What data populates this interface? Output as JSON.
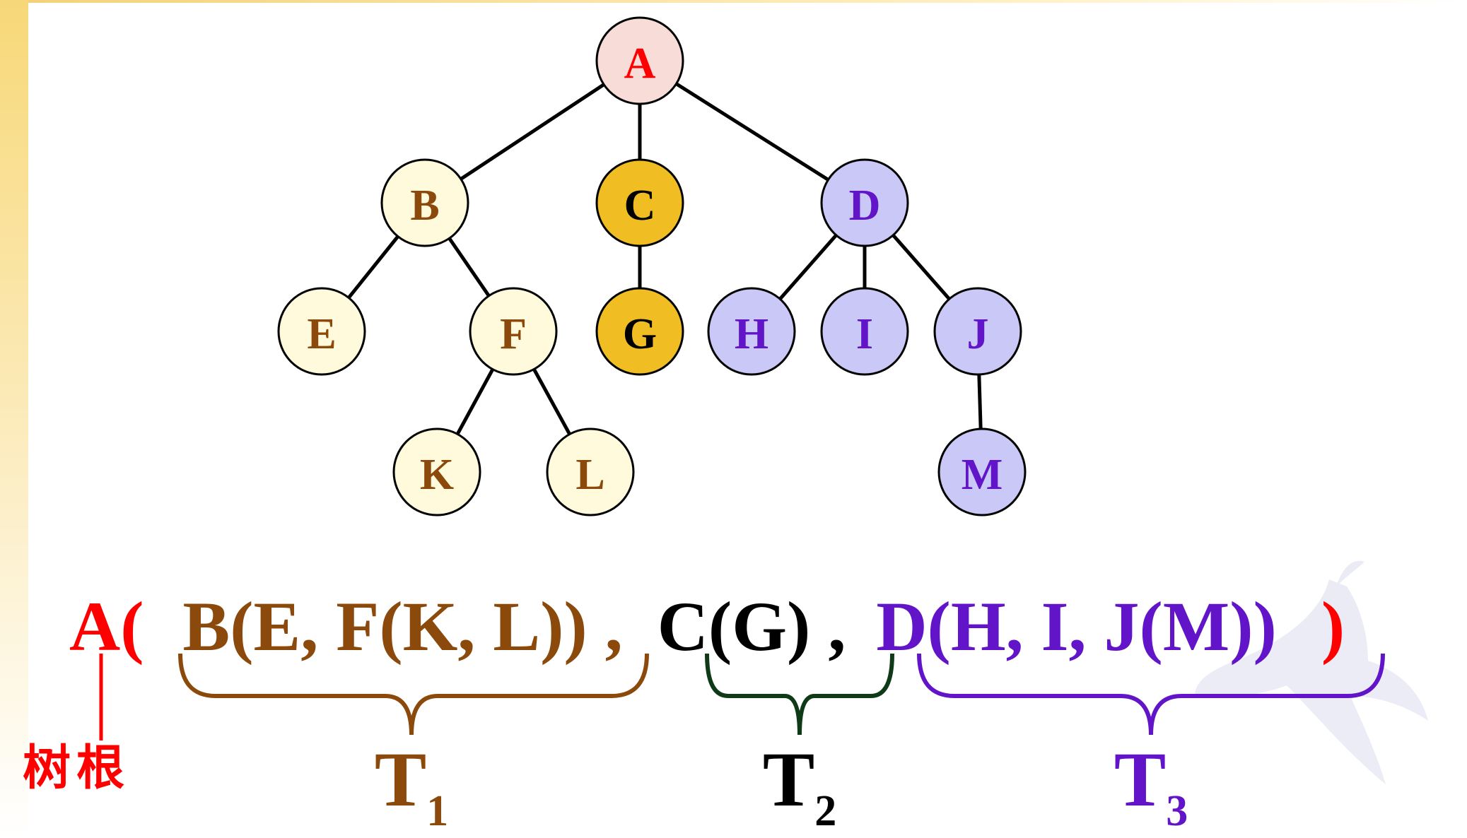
{
  "colors": {
    "root": "#ff0000",
    "t1": "#8b4a0b",
    "t2": "#000000",
    "t3": "#6214c8",
    "t2_brace": "#0f3a17",
    "root_fill": "#f8dcd8",
    "t1_fill": "#fffadb",
    "t2_fill": "#f0bd22",
    "t3_fill": "#c9c8f6",
    "edge": "#000000"
  },
  "tree": {
    "nodes": [
      {
        "id": "A",
        "label": "A",
        "group": "root"
      },
      {
        "id": "B",
        "label": "B",
        "group": "t1"
      },
      {
        "id": "C",
        "label": "C",
        "group": "t2"
      },
      {
        "id": "D",
        "label": "D",
        "group": "t3"
      },
      {
        "id": "E",
        "label": "E",
        "group": "t1"
      },
      {
        "id": "F",
        "label": "F",
        "group": "t1"
      },
      {
        "id": "G",
        "label": "G",
        "group": "t2"
      },
      {
        "id": "H",
        "label": "H",
        "group": "t3"
      },
      {
        "id": "I",
        "label": "I",
        "group": "t3"
      },
      {
        "id": "J",
        "label": "J",
        "group": "t3"
      },
      {
        "id": "K",
        "label": "K",
        "group": "t1"
      },
      {
        "id": "L",
        "label": "L",
        "group": "t1"
      },
      {
        "id": "M",
        "label": "M",
        "group": "t3"
      }
    ],
    "edges": [
      [
        "A",
        "B"
      ],
      [
        "A",
        "C"
      ],
      [
        "A",
        "D"
      ],
      [
        "B",
        "E"
      ],
      [
        "B",
        "F"
      ],
      [
        "C",
        "G"
      ],
      [
        "D",
        "H"
      ],
      [
        "D",
        "I"
      ],
      [
        "D",
        "J"
      ],
      [
        "F",
        "K"
      ],
      [
        "F",
        "L"
      ],
      [
        "J",
        "M"
      ]
    ]
  },
  "expression": {
    "root": "A(",
    "t1": "B(E, F(K, L))",
    "comma1": ",",
    "t2": "C(G)",
    "comma2": ",",
    "t3": "D(H, I, J(M))",
    "close": ")"
  },
  "subtrees": [
    {
      "letter": "T",
      "sub": "1",
      "group": "t1"
    },
    {
      "letter": "T",
      "sub": "2",
      "group": "t2"
    },
    {
      "letter": "T",
      "sub": "3",
      "group": "t3"
    }
  ],
  "root_note": "树根"
}
